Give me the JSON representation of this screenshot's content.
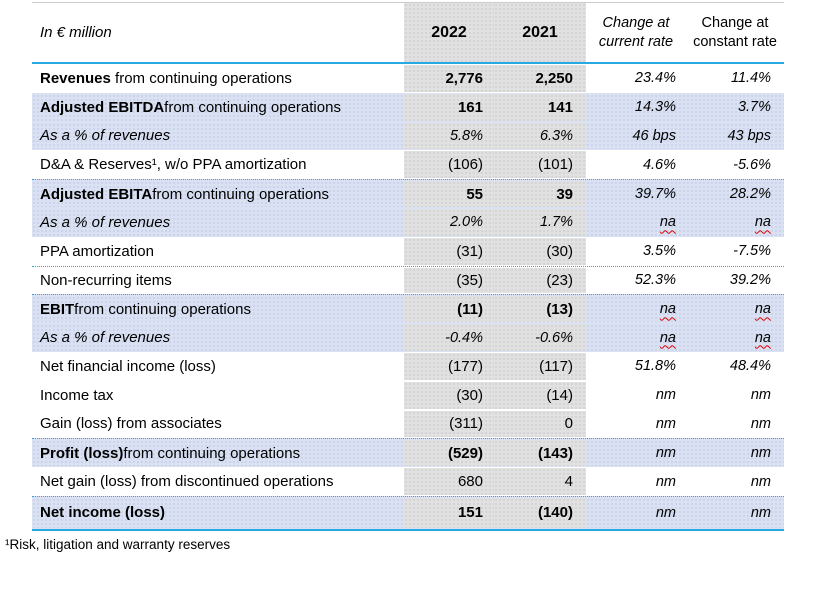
{
  "colors": {
    "accent_line": "#29a9e1",
    "row_highlight": "#d9e1f2",
    "value_col_bg": "#e1e1e1",
    "na_underline": "#e00000",
    "text": "#000000"
  },
  "table": {
    "unit_label": "In € million",
    "col_2022": "2022",
    "col_2021": "2021",
    "col_change_current": "Change at current rate",
    "col_change_constant": "Change at constant rate",
    "rows": [
      {
        "label_bold": "Revenues",
        "label_rest": " from continuing operations",
        "v2022": "2,776",
        "v2021": "2,250",
        "change_current": "23.4%",
        "change_constant": "11.4%",
        "bold_values": true,
        "highlight": false,
        "italic": false,
        "dotted_top": false
      },
      {
        "label_bold": "Adjusted EBITDA",
        "label_rest": " from continuing operations",
        "v2022": "161",
        "v2021": "141",
        "change_current": "14.3%",
        "change_constant": "3.7%",
        "bold_values": true,
        "highlight": true,
        "italic": false,
        "dotted_top": false
      },
      {
        "label_bold": "",
        "label_rest": "As a % of revenues",
        "v2022": "5.8%",
        "v2021": "6.3%",
        "change_current": "46 bps",
        "change_constant": "43 bps",
        "bold_values": false,
        "highlight": true,
        "italic": true,
        "dotted_top": false
      },
      {
        "label_bold": "",
        "label_rest": "D&A & Reserves¹, w/o PPA amortization",
        "v2022": "(106)",
        "v2021": "(101)",
        "change_current": "4.6%",
        "change_constant": "-5.6%",
        "bold_values": false,
        "highlight": false,
        "italic": false,
        "dotted_top": false
      },
      {
        "label_bold": "Adjusted EBITA",
        "label_rest": " from continuing operations",
        "v2022": "55",
        "v2021": "39",
        "change_current": "39.7%",
        "change_constant": "28.2%",
        "bold_values": true,
        "highlight": true,
        "italic": false,
        "dotted_top": true
      },
      {
        "label_bold": "",
        "label_rest": "As a % of revenues",
        "v2022": "2.0%",
        "v2021": "1.7%",
        "change_current": "na",
        "change_constant": "na",
        "bold_values": false,
        "highlight": true,
        "italic": true,
        "dotted_top": false
      },
      {
        "label_bold": "",
        "label_rest": "PPA amortization",
        "v2022": "(31)",
        "v2021": "(30)",
        "change_current": "3.5%",
        "change_constant": "-7.5%",
        "bold_values": false,
        "highlight": false,
        "italic": false,
        "dotted_top": false
      },
      {
        "label_bold": "",
        "label_rest": "Non-recurring items",
        "v2022": "(35)",
        "v2021": "(23)",
        "change_current": "52.3%",
        "change_constant": "39.2%",
        "bold_values": false,
        "highlight": false,
        "italic": false,
        "dotted_top": true
      },
      {
        "label_bold": "EBIT",
        "label_rest": " from continuing operations",
        "v2022": "(11)",
        "v2021": "(13)",
        "change_current": "na",
        "change_constant": "na",
        "bold_values": true,
        "highlight": true,
        "italic": false,
        "dotted_top": true
      },
      {
        "label_bold": "",
        "label_rest": "As a % of revenues",
        "v2022": "-0.4%",
        "v2021": "-0.6%",
        "change_current": "na",
        "change_constant": "na",
        "bold_values": false,
        "highlight": true,
        "italic": true,
        "dotted_top": false
      },
      {
        "label_bold": "",
        "label_rest": "Net financial income (loss)",
        "v2022": "(177)",
        "v2021": "(117)",
        "change_current": "51.8%",
        "change_constant": "48.4%",
        "bold_values": false,
        "highlight": false,
        "italic": false,
        "dotted_top": false
      },
      {
        "label_bold": "",
        "label_rest": "Income tax",
        "v2022": "(30)",
        "v2021": "(14)",
        "change_current": "nm",
        "change_constant": "nm",
        "bold_values": false,
        "highlight": false,
        "italic": false,
        "dotted_top": false
      },
      {
        "label_bold": "",
        "label_rest": "Gain (loss) from associates",
        "v2022": "(311)",
        "v2021": "0",
        "change_current": "nm",
        "change_constant": "nm",
        "bold_values": false,
        "highlight": false,
        "italic": false,
        "dotted_top": false
      },
      {
        "label_bold": "Profit (loss)",
        "label_rest": " from continuing operations",
        "v2022": "(529)",
        "v2021": "(143)",
        "change_current": "nm",
        "change_constant": "nm",
        "bold_values": true,
        "highlight": true,
        "italic": false,
        "dotted_top": true
      },
      {
        "label_bold": "",
        "label_rest": "Net gain (loss) from discontinued operations",
        "v2022": "680",
        "v2021": "4",
        "change_current": "nm",
        "change_constant": "nm",
        "bold_values": false,
        "highlight": false,
        "italic": false,
        "dotted_top": false
      },
      {
        "label_bold": "Net income (loss)",
        "label_rest": "",
        "v2022": "151",
        "v2021": "(140)",
        "change_current": "nm",
        "change_constant": "nm",
        "bold_values": true,
        "highlight": true,
        "italic": false,
        "dotted_top": true
      }
    ],
    "footnote": "¹Risk, litigation and warranty reserves"
  }
}
